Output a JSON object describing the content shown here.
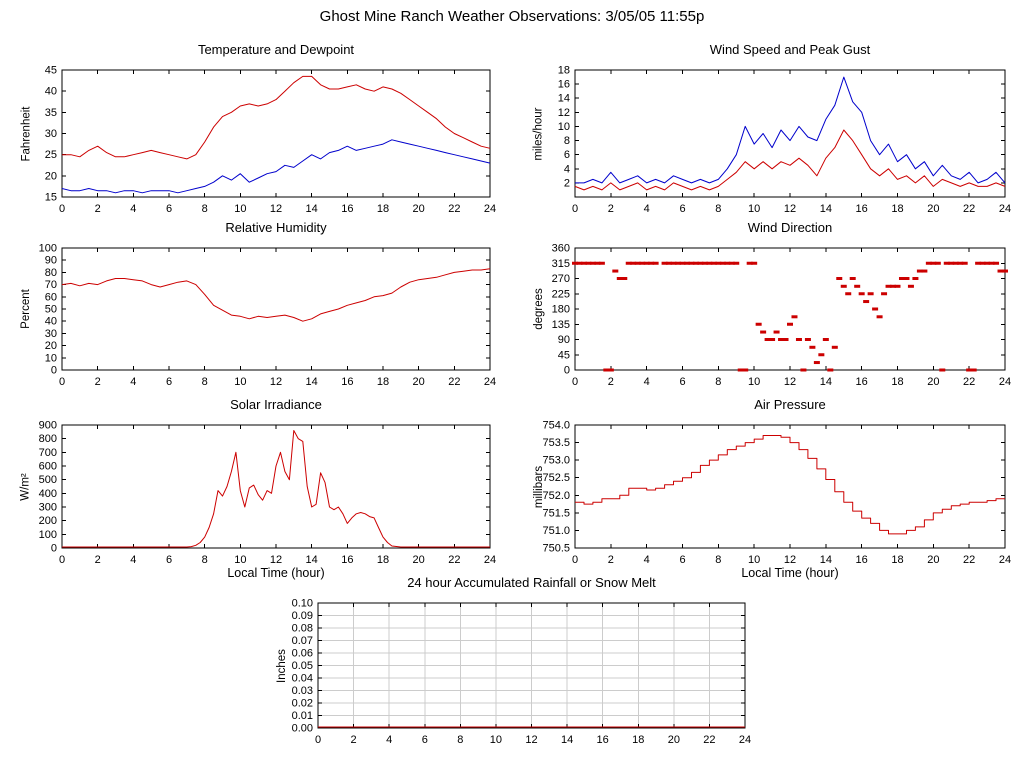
{
  "page": {
    "title": "Ghost Mine Ranch Weather Observations: 3/05/05 11:55p"
  },
  "chart_data": [
    {
      "type": "line",
      "title": "Temperature and Dewpoint",
      "ylabel": "Fahrenheit",
      "xlabel": "",
      "xlim": [
        0,
        24
      ],
      "ylim": [
        15,
        45
      ],
      "xticks": [
        "0",
        "2",
        "4",
        "6",
        "8",
        "10",
        "12",
        "14",
        "16",
        "18",
        "20",
        "22",
        "24"
      ],
      "yticks": [
        "15",
        "20",
        "25",
        "30",
        "35",
        "40",
        "45"
      ],
      "grid": false,
      "x": [
        0,
        0.5,
        1,
        1.5,
        2,
        2.5,
        3,
        3.5,
        4,
        4.5,
        5,
        5.5,
        6,
        6.5,
        7,
        7.5,
        8,
        8.5,
        9,
        9.5,
        10,
        10.5,
        11,
        11.5,
        12,
        12.5,
        13,
        13.5,
        14,
        14.5,
        15,
        15.5,
        16,
        16.5,
        17,
        17.5,
        18,
        18.5,
        19,
        19.5,
        20,
        20.5,
        21,
        21.5,
        22,
        22.5,
        23,
        23.5,
        24
      ],
      "series": [
        {
          "name": "temperature",
          "color": "#cc0000",
          "values": [
            25,
            25,
            24.5,
            26,
            27,
            25.5,
            24.5,
            24.5,
            25,
            25.5,
            26,
            25.5,
            25,
            24.5,
            24,
            25,
            28,
            31.5,
            34,
            35,
            36.5,
            37,
            36.5,
            37,
            38,
            40,
            42,
            43.5,
            43.5,
            41.5,
            40.5,
            40.5,
            41,
            41.5,
            40.5,
            40,
            41,
            40.5,
            39.5,
            38,
            36.5,
            35,
            33.5,
            31.5,
            30,
            29,
            28,
            27,
            26.5
          ]
        },
        {
          "name": "dewpoint",
          "color": "#0000cc",
          "values": [
            17,
            16.5,
            16.5,
            17,
            16.5,
            16.5,
            16,
            16.5,
            16.5,
            16,
            16.5,
            16.5,
            16.5,
            16,
            16.5,
            17,
            17.5,
            18.5,
            20,
            19,
            20.5,
            18.5,
            19.5,
            20.5,
            21,
            22.5,
            22,
            23.5,
            25,
            24,
            25.5,
            26,
            27,
            26,
            26.5,
            27,
            27.5,
            28.5,
            28,
            27.5,
            27,
            26.5,
            26,
            25.5,
            25,
            24.5,
            24,
            23.5,
            23
          ]
        }
      ]
    },
    {
      "type": "line",
      "title": "Wind Speed and Peak Gust",
      "ylabel": "miles/hour",
      "xlabel": "",
      "xlim": [
        0,
        24
      ],
      "ylim": [
        0,
        18
      ],
      "xticks": [
        "0",
        "2",
        "4",
        "6",
        "8",
        "10",
        "12",
        "14",
        "16",
        "18",
        "20",
        "22",
        "24"
      ],
      "yticks": [
        "2",
        "4",
        "6",
        "8",
        "10",
        "12",
        "14",
        "16",
        "18"
      ],
      "grid": false,
      "x": [
        0,
        0.5,
        1,
        1.5,
        2,
        2.5,
        3,
        3.5,
        4,
        4.5,
        5,
        5.5,
        6,
        6.5,
        7,
        7.5,
        8,
        8.5,
        9,
        9.5,
        10,
        10.5,
        11,
        11.5,
        12,
        12.5,
        13,
        13.5,
        14,
        14.5,
        15,
        15.5,
        16,
        16.5,
        17,
        17.5,
        18,
        18.5,
        19,
        19.5,
        20,
        20.5,
        21,
        21.5,
        22,
        22.5,
        23,
        23.5,
        24
      ],
      "series": [
        {
          "name": "wind-speed",
          "color": "#cc0000",
          "values": [
            1.5,
            1,
            1.5,
            1,
            2,
            1,
            1.5,
            2,
            1,
            1.5,
            1,
            2,
            1.5,
            1,
            1.5,
            1,
            1.5,
            2.5,
            3.5,
            5,
            4,
            5,
            4,
            5,
            4.5,
            5.5,
            4.5,
            3,
            5.5,
            7,
            9.5,
            8,
            6,
            4,
            3,
            4,
            2.5,
            3,
            2,
            3,
            1.5,
            2.5,
            2,
            1.5,
            2,
            1.5,
            1.5,
            2,
            1.5
          ]
        },
        {
          "name": "peak-gust",
          "color": "#0000cc",
          "values": [
            2,
            2,
            2.5,
            2,
            3.5,
            2,
            2.5,
            3,
            2,
            2.5,
            2,
            3,
            2.5,
            2,
            2.5,
            2,
            2.5,
            4,
            6,
            10,
            7.5,
            9,
            7,
            9.5,
            8,
            10,
            8.5,
            8,
            11,
            13,
            17,
            13.5,
            12,
            8,
            6,
            7.5,
            5,
            6,
            4,
            5,
            3,
            4.5,
            3,
            2.5,
            3.5,
            2,
            2.5,
            3.5,
            2
          ]
        }
      ]
    },
    {
      "type": "line",
      "title": "Relative Humidity",
      "ylabel": "Percent",
      "xlabel": "",
      "xlim": [
        0,
        24
      ],
      "ylim": [
        0,
        100
      ],
      "xticks": [
        "0",
        "2",
        "4",
        "6",
        "8",
        "10",
        "12",
        "14",
        "16",
        "18",
        "20",
        "22",
        "24"
      ],
      "yticks": [
        "0",
        "10",
        "20",
        "30",
        "40",
        "50",
        "60",
        "70",
        "80",
        "90",
        "100"
      ],
      "grid": false,
      "x": [
        0,
        0.5,
        1,
        1.5,
        2,
        2.5,
        3,
        3.5,
        4,
        4.5,
        5,
        5.5,
        6,
        6.5,
        7,
        7.5,
        8,
        8.5,
        9,
        9.5,
        10,
        10.5,
        11,
        11.5,
        12,
        12.5,
        13,
        13.5,
        14,
        14.5,
        15,
        15.5,
        16,
        16.5,
        17,
        17.5,
        18,
        18.5,
        19,
        19.5,
        20,
        20.5,
        21,
        21.5,
        22,
        22.5,
        23,
        23.5,
        24
      ],
      "series": [
        {
          "name": "relative-humidity",
          "color": "#cc0000",
          "values": [
            70,
            71,
            69,
            71,
            70,
            73,
            75,
            75,
            74,
            73,
            70,
            68,
            70,
            72,
            73,
            70,
            62,
            53,
            49,
            45,
            44,
            42,
            44,
            43,
            44,
            45,
            43,
            40,
            42,
            46,
            48,
            50,
            53,
            55,
            57,
            60,
            61,
            63,
            68,
            72,
            74,
            75,
            76,
            78,
            80,
            81,
            82,
            82,
            83
          ]
        }
      ]
    },
    {
      "type": "scatter",
      "title": "Wind Direction",
      "ylabel": "degrees",
      "xlabel": "",
      "xlim": [
        0,
        24
      ],
      "ylim": [
        0,
        360
      ],
      "xticks": [
        "0",
        "2",
        "4",
        "6",
        "8",
        "10",
        "12",
        "14",
        "16",
        "18",
        "20",
        "22",
        "24"
      ],
      "yticks": [
        "0",
        "45",
        "90",
        "135",
        "180",
        "225",
        "270",
        "315",
        "360"
      ],
      "grid": false,
      "color": "#cc0000",
      "points": [
        [
          0,
          315
        ],
        [
          0.25,
          315
        ],
        [
          0.5,
          315
        ],
        [
          0.75,
          315
        ],
        [
          1,
          315
        ],
        [
          1.25,
          315
        ],
        [
          1.5,
          315
        ],
        [
          1.75,
          0
        ],
        [
          2,
          0
        ],
        [
          2.25,
          292
        ],
        [
          2.5,
          270
        ],
        [
          2.75,
          270
        ],
        [
          3,
          315
        ],
        [
          3.25,
          315
        ],
        [
          3.5,
          315
        ],
        [
          3.75,
          315
        ],
        [
          4,
          315
        ],
        [
          4.25,
          315
        ],
        [
          4.5,
          315
        ],
        [
          5,
          315
        ],
        [
          5.25,
          315
        ],
        [
          5.5,
          315
        ],
        [
          5.75,
          315
        ],
        [
          6,
          315
        ],
        [
          6.25,
          315
        ],
        [
          6.5,
          315
        ],
        [
          6.75,
          315
        ],
        [
          7,
          315
        ],
        [
          7.25,
          315
        ],
        [
          7.5,
          315
        ],
        [
          7.75,
          315
        ],
        [
          8,
          315
        ],
        [
          8.25,
          315
        ],
        [
          8.5,
          315
        ],
        [
          8.75,
          315
        ],
        [
          9,
          315
        ],
        [
          9.25,
          0
        ],
        [
          9.5,
          0
        ],
        [
          9.75,
          315
        ],
        [
          10,
          315
        ],
        [
          10.25,
          135
        ],
        [
          10.5,
          112
        ],
        [
          10.75,
          90
        ],
        [
          11,
          90
        ],
        [
          11.25,
          112
        ],
        [
          11.5,
          90
        ],
        [
          11.75,
          90
        ],
        [
          12,
          135
        ],
        [
          12.25,
          157
        ],
        [
          12.5,
          90
        ],
        [
          12.75,
          0
        ],
        [
          13,
          90
        ],
        [
          13.25,
          67
        ],
        [
          13.5,
          22
        ],
        [
          13.75,
          45
        ],
        [
          14,
          90
        ],
        [
          14.25,
          0
        ],
        [
          14.5,
          67
        ],
        [
          14.75,
          270
        ],
        [
          15,
          247
        ],
        [
          15.25,
          225
        ],
        [
          15.5,
          270
        ],
        [
          15.75,
          247
        ],
        [
          16,
          225
        ],
        [
          16.25,
          202
        ],
        [
          16.5,
          225
        ],
        [
          16.75,
          180
        ],
        [
          17,
          157
        ],
        [
          17.25,
          225
        ],
        [
          17.5,
          247
        ],
        [
          17.75,
          247
        ],
        [
          18,
          247
        ],
        [
          18.25,
          270
        ],
        [
          18.5,
          270
        ],
        [
          18.75,
          247
        ],
        [
          19,
          270
        ],
        [
          19.25,
          292
        ],
        [
          19.5,
          292
        ],
        [
          19.75,
          315
        ],
        [
          20,
          315
        ],
        [
          20.25,
          315
        ],
        [
          20.5,
          0
        ],
        [
          20.75,
          315
        ],
        [
          21,
          315
        ],
        [
          21.25,
          315
        ],
        [
          21.5,
          315
        ],
        [
          21.75,
          315
        ],
        [
          22,
          0
        ],
        [
          22.25,
          0
        ],
        [
          22.5,
          315
        ],
        [
          22.75,
          315
        ],
        [
          23,
          315
        ],
        [
          23.25,
          315
        ],
        [
          23.5,
          315
        ],
        [
          23.75,
          292
        ],
        [
          24,
          292
        ]
      ]
    },
    {
      "type": "line",
      "title": "Solar Irradiance",
      "ylabel": "W/m²",
      "xlabel": "Local Time (hour)",
      "xlim": [
        0,
        24
      ],
      "ylim": [
        0,
        900
      ],
      "xticks": [
        "0",
        "2",
        "4",
        "6",
        "8",
        "10",
        "12",
        "14",
        "16",
        "18",
        "20",
        "22",
        "24"
      ],
      "yticks": [
        "0",
        "100",
        "200",
        "300",
        "400",
        "500",
        "600",
        "700",
        "800",
        "900"
      ],
      "grid": false,
      "x": [
        0,
        1,
        2,
        3,
        4,
        5,
        6,
        6.5,
        7,
        7.25,
        7.5,
        7.75,
        8,
        8.25,
        8.5,
        8.75,
        9,
        9.25,
        9.5,
        9.75,
        10,
        10.25,
        10.5,
        10.75,
        11,
        11.25,
        11.5,
        11.75,
        12,
        12.25,
        12.5,
        12.75,
        13,
        13.25,
        13.5,
        13.75,
        14,
        14.25,
        14.5,
        14.75,
        15,
        15.25,
        15.5,
        15.75,
        16,
        16.25,
        16.5,
        16.75,
        17,
        17.25,
        17.5,
        17.75,
        18,
        18.25,
        18.5,
        19,
        20,
        21,
        22,
        23,
        24
      ],
      "series": [
        {
          "name": "solar-irradiance",
          "color": "#cc0000",
          "values": [
            0,
            0,
            0,
            0,
            0,
            0,
            0,
            0,
            5,
            10,
            20,
            40,
            80,
            150,
            250,
            420,
            380,
            450,
            560,
            700,
            420,
            300,
            440,
            460,
            390,
            350,
            420,
            400,
            600,
            700,
            560,
            500,
            860,
            800,
            780,
            450,
            300,
            320,
            550,
            480,
            300,
            280,
            300,
            250,
            180,
            220,
            250,
            260,
            250,
            230,
            220,
            150,
            80,
            40,
            15,
            0,
            0,
            0,
            0,
            0,
            0
          ]
        }
      ]
    },
    {
      "type": "line",
      "title": "Air Pressure",
      "ylabel": "millibars",
      "xlabel": "Local Time (hour)",
      "xlim": [
        0,
        24
      ],
      "ylim": [
        750.5,
        754.0
      ],
      "xticks": [
        "0",
        "2",
        "4",
        "6",
        "8",
        "10",
        "12",
        "14",
        "16",
        "18",
        "20",
        "22",
        "24"
      ],
      "yticks": [
        "750.5",
        "751.0",
        "751.5",
        "752.0",
        "752.5",
        "753.0",
        "753.5",
        "754.0"
      ],
      "grid": false,
      "line_style": "step",
      "x": [
        0,
        0.5,
        1,
        1.5,
        2,
        2.5,
        3,
        3.5,
        4,
        4.5,
        5,
        5.5,
        6,
        6.5,
        7,
        7.5,
        8,
        8.5,
        9,
        9.5,
        10,
        10.5,
        11,
        11.5,
        12,
        12.5,
        13,
        13.5,
        14,
        14.5,
        15,
        15.5,
        16,
        16.5,
        17,
        17.5,
        18,
        18.5,
        19,
        19.5,
        20,
        20.5,
        21,
        21.5,
        22,
        22.5,
        23,
        23.5,
        24
      ],
      "series": [
        {
          "name": "air-pressure",
          "color": "#cc0000",
          "values": [
            751.8,
            751.75,
            751.8,
            751.9,
            751.9,
            752.0,
            752.2,
            752.2,
            752.15,
            752.2,
            752.3,
            752.4,
            752.5,
            752.65,
            752.85,
            753.0,
            753.15,
            753.3,
            753.4,
            753.5,
            753.6,
            753.7,
            753.7,
            753.65,
            753.5,
            753.3,
            753.05,
            752.75,
            752.45,
            752.1,
            751.8,
            751.55,
            751.35,
            751.2,
            751.0,
            750.9,
            750.9,
            751.0,
            751.1,
            751.3,
            751.5,
            751.6,
            751.7,
            751.75,
            751.8,
            751.8,
            751.85,
            751.9,
            751.9
          ]
        }
      ]
    },
    {
      "type": "line",
      "title": "24 hour Accumulated Rainfall or Snow Melt",
      "ylabel": "Inches",
      "xlabel": "",
      "xlim": [
        0,
        24
      ],
      "ylim": [
        0,
        0.1
      ],
      "xticks": [
        "0",
        "2",
        "4",
        "6",
        "8",
        "10",
        "12",
        "14",
        "16",
        "18",
        "20",
        "22",
        "24"
      ],
      "yticks": [
        "0.00",
        "0.01",
        "0.02",
        "0.03",
        "0.04",
        "0.05",
        "0.06",
        "0.07",
        "0.08",
        "0.09",
        "0.10"
      ],
      "grid": true,
      "x": [
        0,
        24
      ],
      "series": [
        {
          "name": "accumulated-rainfall",
          "color": "#cc0000",
          "values": [
            0,
            0
          ]
        }
      ]
    }
  ]
}
